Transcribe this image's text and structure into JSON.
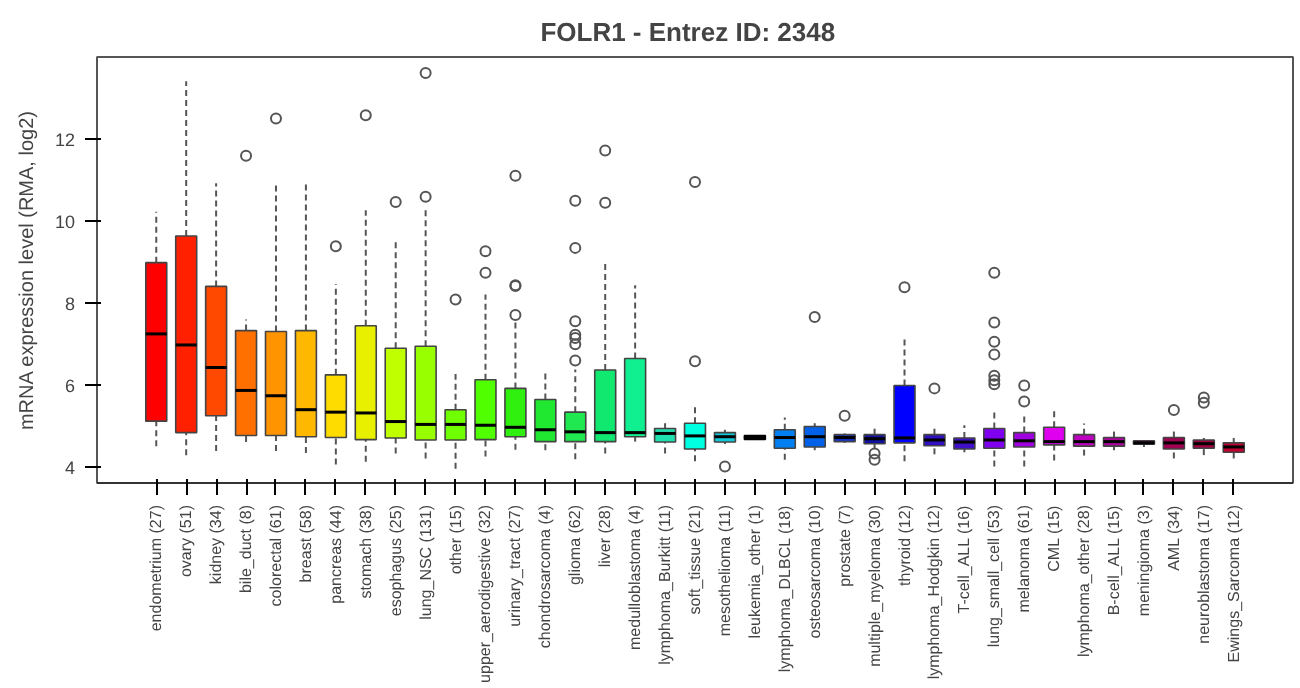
{
  "chart_data": {
    "type": "box",
    "title": "FOLR1  -  Entrez ID: 2348",
    "ylabel": "mRNA expression level (RMA, log2)",
    "categories": [
      "endometrium (27)",
      "ovary (51)",
      "kidney (34)",
      "bile_duct (8)",
      "colorectal (61)",
      "breast (58)",
      "pancreas (44)",
      "stomach (38)",
      "esophagus (25)",
      "lung_NSC (131)",
      "other (15)",
      "upper_aerodigestive (32)",
      "urinary_tract (27)",
      "chondrosarcoma (4)",
      "glioma (62)",
      "liver (28)",
      "medulloblastoma (4)",
      "lymphoma_Burkitt (11)",
      "soft_tissue (21)",
      "mesothelioma (11)",
      "leukemia_other (1)",
      "lymphoma_DLBCL (18)",
      "osteosarcoma (10)",
      "prostate (7)",
      "multiple_myeloma (30)",
      "thyroid (12)",
      "lymphoma_Hodgkin (12)",
      "T-cell_ALL (16)",
      "lung_small_cell (53)",
      "melanoma (61)",
      "CML (15)",
      "lymphoma_other (28)",
      "B-cell_ALL (15)",
      "meningioma (3)",
      "AML (34)",
      "neuroblastoma (17)",
      "Ewings_Sarcoma (12)"
    ],
    "colors": [
      "#ff0000",
      "#ff2000",
      "#ff4800",
      "#ff7000",
      "#ff9400",
      "#ffb800",
      "#ffdc00",
      "#e8f000",
      "#c0ff00",
      "#98ff00",
      "#70ff00",
      "#50ff00",
      "#30f010",
      "#20e830",
      "#20e850",
      "#10e870",
      "#10f090",
      "#20e0b0",
      "#00ffe0",
      "#10c8d8",
      "#000000",
      "#0080f0",
      "#0060e8",
      "#1030d0",
      "#1010a0",
      "#0000ff",
      "#3010c0",
      "#4010c8",
      "#8000f0",
      "#a000e0",
      "#e000f0",
      "#c000c0",
      "#b000a0",
      "#900070",
      "#a00050",
      "#a00040",
      "#c00030"
    ],
    "boxes": [
      {
        "low": 4.5,
        "q1": 5.11,
        "median": 7.24,
        "q3": 8.98,
        "high": 10.22
      },
      {
        "low": 4.28,
        "q1": 4.83,
        "median": 6.97,
        "q3": 9.63,
        "high": 13.41
      },
      {
        "low": 4.38,
        "q1": 5.24,
        "median": 6.42,
        "q3": 8.4,
        "high": 10.92
      },
      {
        "low": 4.6,
        "q1": 4.76,
        "median": 5.86,
        "q3": 7.32,
        "high": 7.59,
        "outliers": [
          11.59
        ]
      },
      {
        "low": 4.38,
        "q1": 4.76,
        "median": 5.73,
        "q3": 7.3,
        "high": 10.95,
        "outliers": [
          12.5
        ]
      },
      {
        "low": 4.33,
        "q1": 4.73,
        "median": 5.39,
        "q3": 7.32,
        "high": 10.9
      },
      {
        "low": 4.05,
        "q1": 4.71,
        "median": 5.33,
        "q3": 6.24,
        "high": 8.46,
        "outliers": [
          9.38
        ]
      },
      {
        "low": 4.12,
        "q1": 4.66,
        "median": 5.31,
        "q3": 7.44,
        "high": 10.26,
        "outliers": [
          12.58
        ]
      },
      {
        "low": 4.32,
        "q1": 4.7,
        "median": 5.1,
        "q3": 6.89,
        "high": 9.53,
        "outliers": [
          10.46
        ]
      },
      {
        "low": 4.2,
        "q1": 4.65,
        "median": 5.03,
        "q3": 6.94,
        "high": 10.29,
        "outliers": [
          10.59,
          13.61
        ]
      },
      {
        "low": 3.95,
        "q1": 4.65,
        "median": 5.03,
        "q3": 5.39,
        "high": 6.26,
        "outliers": [
          8.08
        ]
      },
      {
        "low": 4.25,
        "q1": 4.66,
        "median": 5.01,
        "q3": 6.12,
        "high": 8.2,
        "outliers": [
          8.73,
          9.26
        ]
      },
      {
        "low": 4.41,
        "q1": 4.73,
        "median": 4.96,
        "q3": 5.91,
        "high": 7.57,
        "outliers": [
          7.7,
          8.41,
          8.43,
          11.1
        ]
      },
      {
        "low": 4.4,
        "q1": 4.61,
        "median": 4.9,
        "q3": 5.64,
        "high": 6.31
      },
      {
        "low": 4.18,
        "q1": 4.61,
        "median": 4.85,
        "q3": 5.33,
        "high": 6.37,
        "outliers": [
          6.59,
          6.99,
          7.14,
          7.22,
          7.55,
          9.34,
          10.49
        ]
      },
      {
        "low": 4.32,
        "q1": 4.61,
        "median": 4.83,
        "q3": 6.36,
        "high": 8.96,
        "outliers": [
          10.44,
          11.72
        ]
      },
      {
        "low": 4.61,
        "q1": 4.73,
        "median": 4.83,
        "q3": 6.64,
        "high": 8.43
      },
      {
        "low": 4.32,
        "q1": 4.6,
        "median": 4.81,
        "q3": 4.93,
        "high": 5.06
      },
      {
        "low": 4.13,
        "q1": 4.43,
        "median": 4.75,
        "q3": 5.06,
        "high": 5.51,
        "outliers": [
          6.57,
          10.95
        ]
      },
      {
        "low": 4.55,
        "q1": 4.6,
        "median": 4.73,
        "q3": 4.83,
        "high": 4.9,
        "outliers": [
          4.0
        ]
      },
      {
        "low": 4.71,
        "q1": 4.71,
        "median": 4.71,
        "q3": 4.71,
        "high": 4.71
      },
      {
        "low": 4.17,
        "q1": 4.45,
        "median": 4.71,
        "q3": 4.9,
        "high": 5.2
      },
      {
        "low": 4.4,
        "q1": 4.48,
        "median": 4.73,
        "q3": 4.98,
        "high": 5.06,
        "outliers": [
          7.65
        ]
      },
      {
        "low": 4.58,
        "q1": 4.61,
        "median": 4.71,
        "q3": 4.78,
        "high": 4.81,
        "outliers": [
          5.24
        ]
      },
      {
        "low": 4.43,
        "q1": 4.56,
        "median": 4.68,
        "q3": 4.78,
        "high": 5.01,
        "outliers": [
          4.32,
          4.17
        ]
      },
      {
        "low": 4.13,
        "q1": 4.58,
        "median": 4.7,
        "q3": 5.98,
        "high": 7.15,
        "outliers": [
          8.38
        ]
      },
      {
        "low": 4.3,
        "q1": 4.51,
        "median": 4.65,
        "q3": 4.78,
        "high": 5.01,
        "outliers": [
          5.91
        ]
      },
      {
        "low": 4.35,
        "q1": 4.43,
        "median": 4.6,
        "q3": 4.7,
        "high": 5.01
      },
      {
        "low": 4.0,
        "q1": 4.45,
        "median": 4.65,
        "q3": 4.93,
        "high": 5.39,
        "outliers": [
          6.01,
          6.11,
          6.22,
          6.74,
          7.05,
          7.52,
          8.73
        ]
      },
      {
        "low": 4.0,
        "q1": 4.48,
        "median": 4.63,
        "q3": 4.83,
        "high": 5.29,
        "outliers": [
          5.59,
          5.98
        ]
      },
      {
        "low": 4.15,
        "q1": 4.53,
        "median": 4.61,
        "q3": 4.96,
        "high": 5.36
      },
      {
        "low": 4.27,
        "q1": 4.5,
        "median": 4.61,
        "q3": 4.78,
        "high": 5.05
      },
      {
        "low": 4.4,
        "q1": 4.5,
        "median": 4.61,
        "q3": 4.71,
        "high": 4.91
      },
      {
        "low": 4.48,
        "q1": 4.55,
        "median": 4.58,
        "q3": 4.63,
        "high": 4.63
      },
      {
        "low": 4.2,
        "q1": 4.43,
        "median": 4.58,
        "q3": 4.71,
        "high": 4.91,
        "outliers": [
          5.38
        ]
      },
      {
        "low": 4.28,
        "q1": 4.45,
        "median": 4.56,
        "q3": 4.65,
        "high": 4.7,
        "outliers": [
          5.56,
          5.69
        ]
      },
      {
        "low": 4.2,
        "q1": 4.35,
        "median": 4.48,
        "q3": 4.58,
        "high": 4.7
      }
    ],
    "ylim": [
      3.6,
      14.0
    ],
    "yticks": [
      4,
      6,
      8,
      10,
      12
    ],
    "grid": false
  }
}
